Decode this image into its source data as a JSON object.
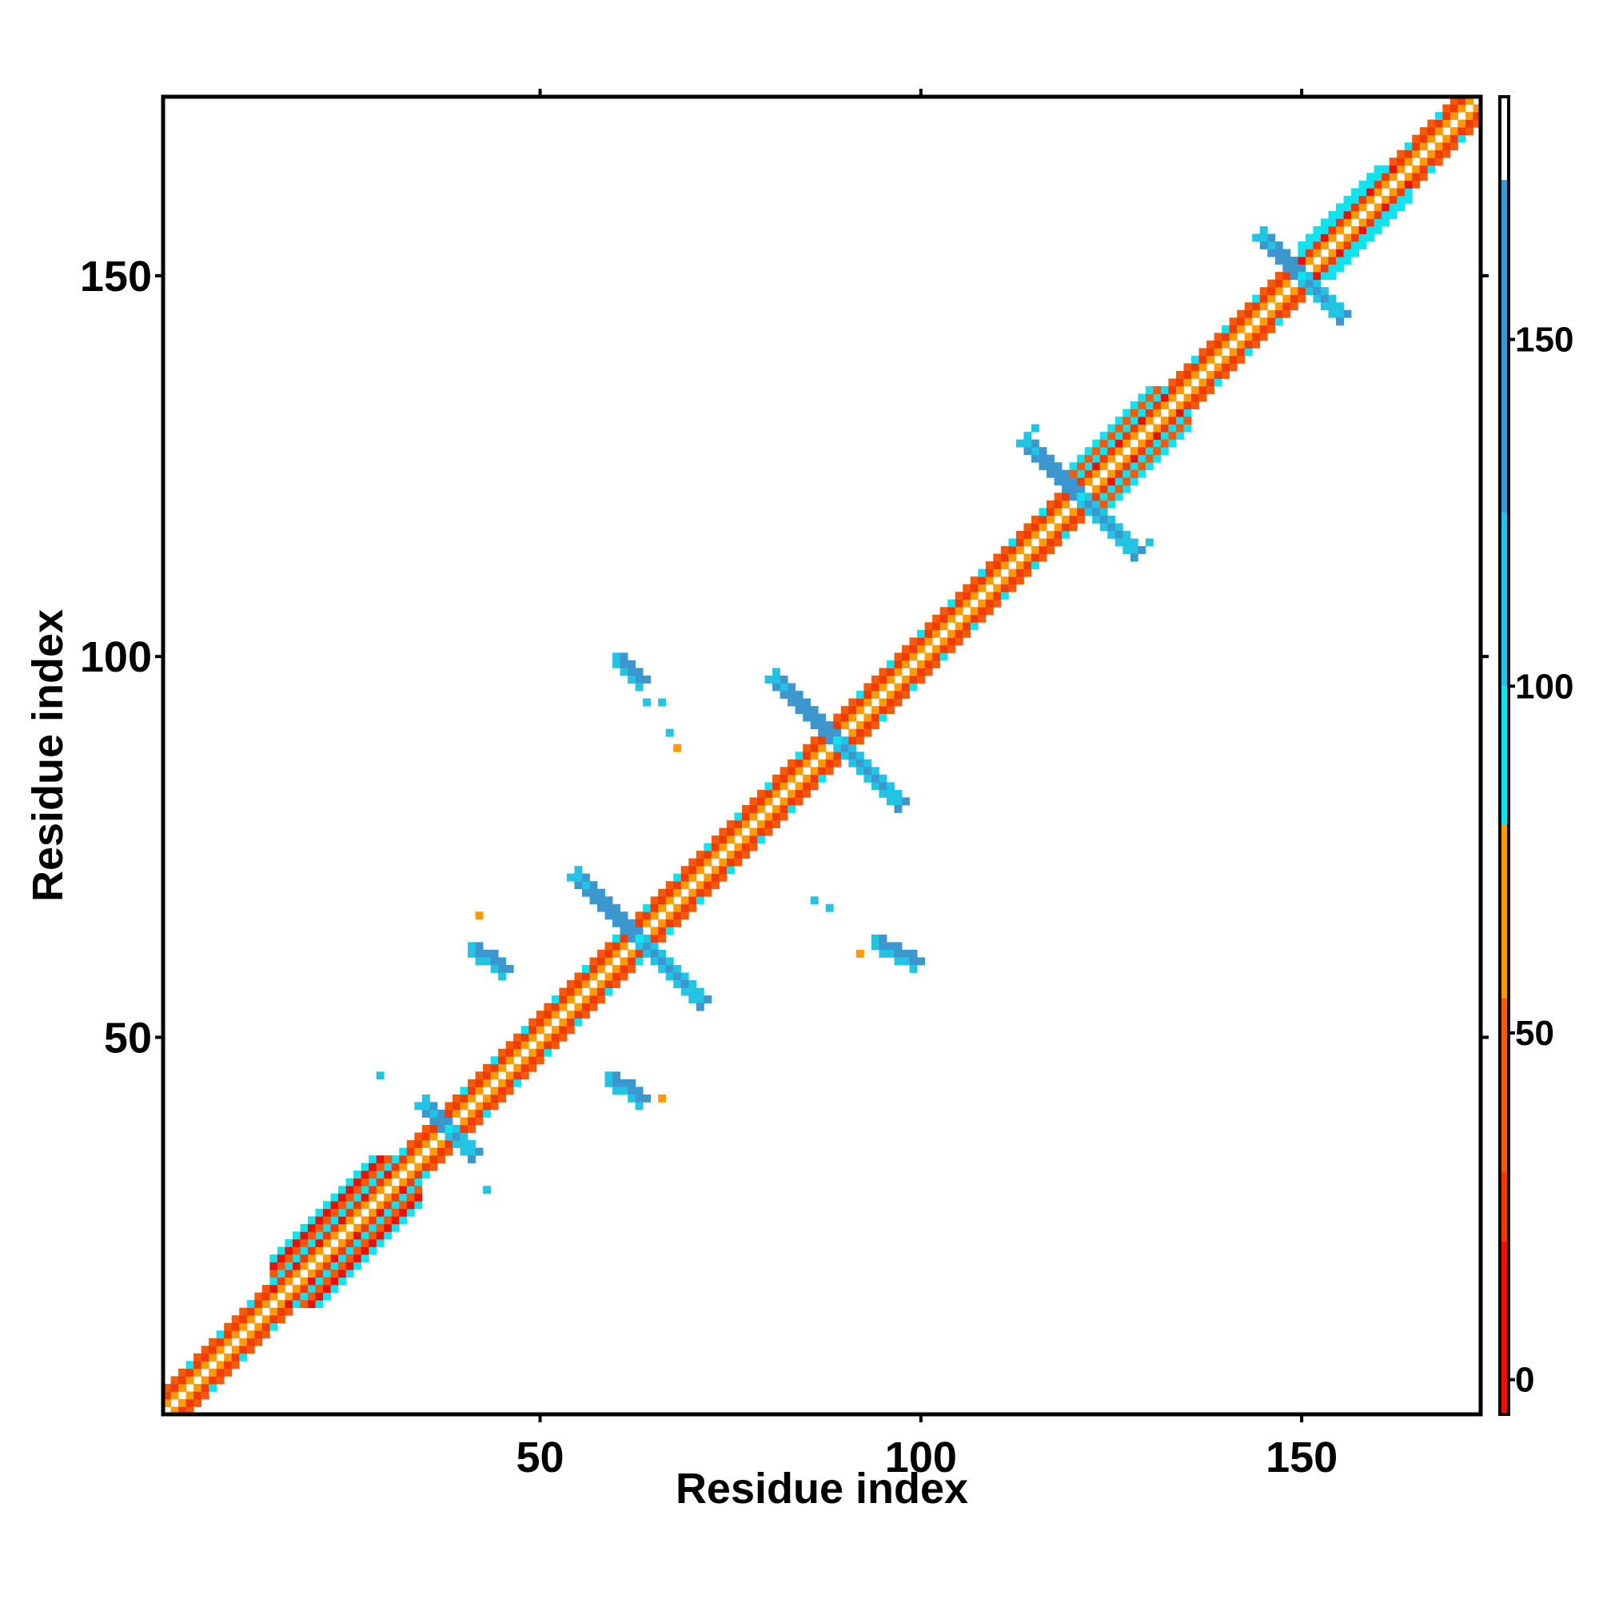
{
  "chart_data": {
    "type": "heatmap",
    "title": "",
    "xlabel": "Residue index",
    "ylabel": "Residue index",
    "xlim": [
      1,
      173
    ],
    "ylim": [
      1,
      173
    ],
    "x_ticks": [
      50,
      100,
      150
    ],
    "y_ticks": [
      50,
      100,
      150
    ],
    "colorbar": {
      "range": [
        -5,
        185
      ],
      "ticks": [
        0,
        50,
        100,
        150
      ],
      "bands": [
        {
          "from": -5,
          "to": 20,
          "color": "#e8120a"
        },
        {
          "from": 20,
          "to": 30,
          "color": "#f03a08"
        },
        {
          "from": 30,
          "to": 55,
          "color": "#f45a0a"
        },
        {
          "from": 55,
          "to": 80,
          "color": "#ff9a00"
        },
        {
          "from": 80,
          "to": 100,
          "color": "#10e2ee"
        },
        {
          "from": 100,
          "to": 125,
          "color": "#23c3e3"
        },
        {
          "from": 125,
          "to": 173,
          "color": "#3d97cf"
        },
        {
          "from": 173,
          "to": 185,
          "color": "#ffffff"
        }
      ]
    },
    "features": [
      {
        "kind": "diagonal_band",
        "from": 1,
        "to": 173,
        "width": 3
      },
      {
        "kind": "helix_block",
        "from": 15,
        "to": 32,
        "width": 6
      },
      {
        "kind": "helix_block",
        "from": 120,
        "to": 133,
        "width": 5
      },
      {
        "kind": "helix_block",
        "from": 150,
        "to": 162,
        "width": 4
      },
      {
        "kind": "cross",
        "x": 38,
        "y": 38,
        "arm": 3
      },
      {
        "kind": "cross",
        "x": 63,
        "y": 63,
        "arm": 8
      },
      {
        "kind": "cross",
        "x": 89,
        "y": 89,
        "arm": 8
      },
      {
        "kind": "cross",
        "x": 121,
        "y": 121,
        "arm": 7
      },
      {
        "kind": "cross",
        "x": 150,
        "y": 150,
        "arm": 5
      },
      {
        "kind": "contact",
        "x1": 41,
        "y1": 62,
        "x2": 45,
        "y2": 59
      },
      {
        "kind": "contact",
        "x1": 59,
        "y1": 45,
        "x2": 63,
        "y2": 42
      },
      {
        "kind": "contact",
        "x1": 60,
        "y1": 100,
        "x2": 63,
        "y2": 97
      },
      {
        "kind": "contact",
        "x1": 94,
        "y1": 63,
        "x2": 99,
        "y2": 60
      },
      {
        "kind": "point",
        "x": 29,
        "y": 45
      },
      {
        "kind": "point",
        "x": 43,
        "y": 30
      },
      {
        "kind": "point",
        "x": 42,
        "y": 66
      },
      {
        "kind": "point",
        "x": 66,
        "y": 42
      },
      {
        "kind": "point",
        "x": 64,
        "y": 94
      },
      {
        "kind": "point",
        "x": 66,
        "y": 94
      },
      {
        "kind": "point",
        "x": 67,
        "y": 90
      },
      {
        "kind": "point",
        "x": 68,
        "y": 88
      },
      {
        "kind": "point",
        "x": 86,
        "y": 68
      },
      {
        "kind": "point",
        "x": 88,
        "y": 67
      },
      {
        "kind": "point",
        "x": 92,
        "y": 61
      },
      {
        "kind": "point",
        "x": 115,
        "y": 130
      },
      {
        "kind": "point",
        "x": 130,
        "y": 115
      }
    ]
  }
}
